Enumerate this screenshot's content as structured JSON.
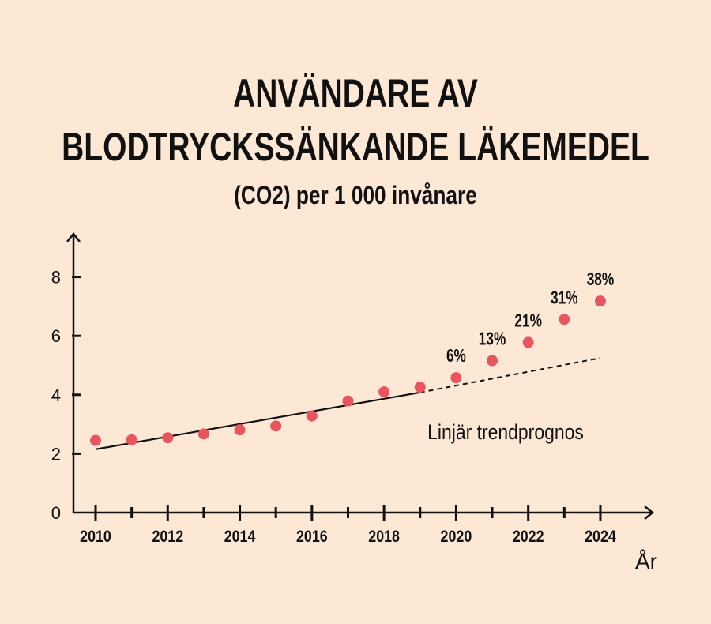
{
  "chart_data": {
    "type": "scatter",
    "title": [
      "ANVÄNDARE AV",
      "BLODTRYCKSSÄNKANDE LÄKEMEDEL"
    ],
    "subtitle": "(CO2) per 1 000 invånare",
    "xlabel": "År",
    "ylabel": "",
    "x": [
      2010,
      2011,
      2012,
      2013,
      2014,
      2015,
      2016,
      2017,
      2018,
      2019,
      2020,
      2021,
      2022,
      2023,
      2024
    ],
    "values": [
      2.45,
      2.47,
      2.54,
      2.67,
      2.81,
      2.94,
      3.28,
      3.79,
      4.1,
      4.26,
      4.58,
      5.16,
      5.78,
      6.56,
      7.18
    ],
    "point_labels": [
      "",
      "",
      "",
      "",
      "",
      "",
      "",
      "",
      "",
      "",
      "6%",
      "13%",
      "21%",
      "31%",
      "38%"
    ],
    "trend": {
      "label": "Linjär trendprognos",
      "x": [
        2010,
        2019,
        2024
      ],
      "y": [
        2.15,
        4.08,
        5.25
      ],
      "solid_until": 2019
    },
    "xticks": [
      2010,
      2012,
      2014,
      2016,
      2018,
      2020,
      2022,
      2024
    ],
    "yticks": [
      0,
      2,
      4,
      6,
      8
    ],
    "xlim": [
      2009.4,
      2025.5
    ],
    "ylim": [
      0,
      9.4
    ],
    "grid": false,
    "colors": {
      "point": "#e8555e",
      "line": "#111111",
      "background": "#fde8d6",
      "frame": "#e87a80"
    }
  }
}
